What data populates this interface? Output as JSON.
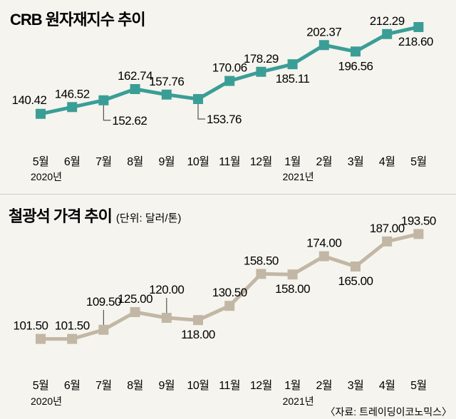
{
  "chart_data": [
    {
      "type": "line",
      "title": "CRB 원자재지수 추이",
      "color": "#3a9e96",
      "categories": [
        "5월",
        "6월",
        "7월",
        "8월",
        "9월",
        "10월",
        "11월",
        "12월",
        "1월",
        "2월",
        "3월",
        "4월",
        "5월"
      ],
      "year_labels": [
        {
          "index": 0,
          "text": "2020년"
        },
        {
          "index": 8,
          "text": "2021년"
        }
      ],
      "series": [
        {
          "values": [
            140.42,
            146.52,
            152.62,
            162.74,
            157.76,
            153.76,
            170.06,
            178.29,
            185.11,
            202.37,
            196.56,
            212.29,
            218.6
          ]
        }
      ],
      "value_labels": [
        "140.42",
        "146.52",
        "152.62",
        "162.74",
        "157.76",
        "153.76",
        "170.06",
        "178.29",
        "185.11",
        "202.37",
        "196.56",
        "212.29",
        "218.60"
      ],
      "ylim": [
        130,
        225
      ],
      "grid": false,
      "legend": false
    },
    {
      "type": "line",
      "title": "철광석 가격 추이",
      "unit": "(단위: 달러/톤)",
      "color": "#c2b7a5",
      "categories": [
        "5월",
        "6월",
        "7월",
        "8월",
        "9월",
        "10월",
        "11월",
        "12월",
        "1월",
        "2월",
        "3월",
        "4월",
        "5월"
      ],
      "year_labels": [
        {
          "index": 0,
          "text": "2020년"
        },
        {
          "index": 8,
          "text": "2021년"
        }
      ],
      "series": [
        {
          "values": [
            101.5,
            101.5,
            109.5,
            125.0,
            120.0,
            118.0,
            130.5,
            158.5,
            158.0,
            174.0,
            165.0,
            187.0,
            193.5
          ]
        }
      ],
      "value_labels": [
        "101.50",
        "101.50",
        "109.50",
        "125.00",
        "120.00",
        "118.00",
        "130.50",
        "158.50",
        "158.00",
        "174.00",
        "165.00",
        "187.00",
        "193.50"
      ],
      "ylim": [
        90,
        200
      ],
      "grid": false,
      "legend": false
    }
  ],
  "source": "〈자료: 트레이딩이코노믹스〉"
}
